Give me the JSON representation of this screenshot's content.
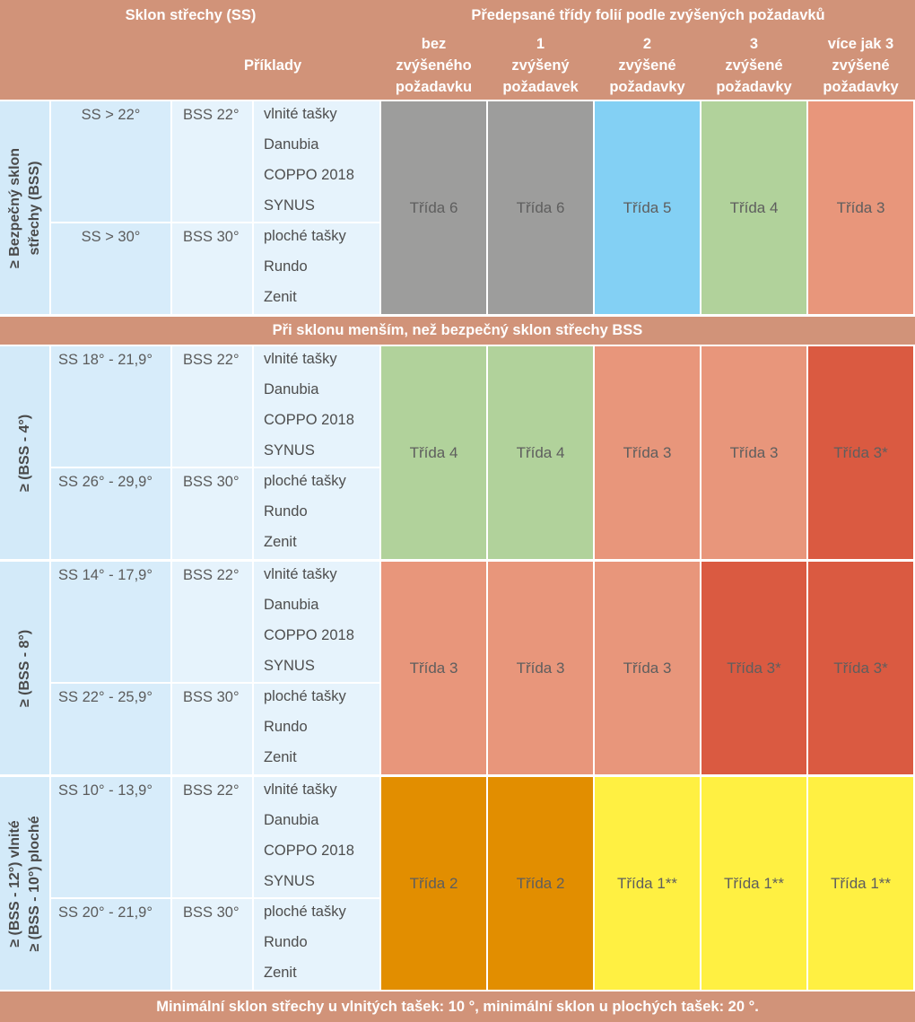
{
  "header": {
    "slope_title": "Sklon střechy (SS)",
    "classes_title": "Předepsané třídy folií podle zvýšených požadavků",
    "examples_title": "Příklady",
    "columns": [
      [
        "bez",
        "zvýšeného",
        "požadavku"
      ],
      [
        "1",
        "zvýšený",
        "požadavek"
      ],
      [
        "2",
        "zvýšené",
        "požadavky"
      ],
      [
        "3",
        "zvýšené",
        "požadavky"
      ],
      [
        "více jak 3",
        "zvýšené",
        "požadavky"
      ]
    ]
  },
  "colors": {
    "header_bg": "#d19379",
    "gray": "#9d9d9c",
    "blue": "#83d0f4",
    "green": "#b1d29b",
    "salmon": "#e8967b",
    "red": "#da5a41",
    "orange": "#e28e00",
    "yellow": "#fff042"
  },
  "middle_bar": "Při sklonu menším, než bezpečný sklon střechy BSS",
  "footer_bar": "Minimální sklon střechy u vlnitých tašek: 10 °, minimální sklon u plochých tašek: 20 °.",
  "groups": [
    {
      "label": [
        "≥ Bezpečný sklon",
        "střechy (BSS)"
      ],
      "subrows": [
        {
          "range": "SS > 22°",
          "bss": "BSS 22°",
          "examples": [
            "vlnité tašky",
            "Danubia",
            "COPPO 2018",
            "SYNUS"
          ]
        },
        {
          "range": "SS > 30°",
          "bss": "BSS 30°",
          "examples": [
            "ploché tašky",
            "Rundo",
            "Zenit"
          ]
        }
      ],
      "classes": [
        {
          "label": "Třída 6",
          "color": "#9d9d9c"
        },
        {
          "label": "Třída 6",
          "color": "#9d9d9c"
        },
        {
          "label": "Třída 5",
          "color": "#83d0f4"
        },
        {
          "label": "Třída 4",
          "color": "#b1d29b"
        },
        {
          "label": "Třída 3",
          "color": "#e8967b"
        }
      ]
    },
    {
      "label": [
        "≥ (BSS - 4°)"
      ],
      "subrows": [
        {
          "range": "SS 18° - 21,9°",
          "bss": "BSS 22°",
          "examples": [
            "vlnité tašky",
            "Danubia",
            "COPPO 2018",
            "SYNUS"
          ]
        },
        {
          "range": "SS 26° - 29,9°",
          "bss": "BSS 30°",
          "examples": [
            "ploché tašky",
            "Rundo",
            "Zenit"
          ]
        }
      ],
      "classes": [
        {
          "label": "Třída 4",
          "color": "#b1d29b"
        },
        {
          "label": "Třída 4",
          "color": "#b1d29b"
        },
        {
          "label": "Třída 3",
          "color": "#e8967b"
        },
        {
          "label": "Třída 3",
          "color": "#e8967b"
        },
        {
          "label": "Třída 3*",
          "color": "#da5a41"
        }
      ]
    },
    {
      "label": [
        "≥ (BSS - 8°)"
      ],
      "subrows": [
        {
          "range": "SS 14° - 17,9°",
          "bss": "BSS 22°",
          "examples": [
            "vlnité tašky",
            "Danubia",
            "COPPO 2018",
            "SYNUS"
          ]
        },
        {
          "range": "SS 22° - 25,9°",
          "bss": "BSS 30°",
          "examples": [
            "ploché tašky",
            "Rundo",
            "Zenit"
          ]
        }
      ],
      "classes": [
        {
          "label": "Třída 3",
          "color": "#e8967b"
        },
        {
          "label": "Třída 3",
          "color": "#e8967b"
        },
        {
          "label": "Třída 3",
          "color": "#e8967b"
        },
        {
          "label": "Třída 3*",
          "color": "#da5a41"
        },
        {
          "label": "Třída 3*",
          "color": "#da5a41"
        }
      ]
    },
    {
      "label": [
        "≥ (BSS - 12°) vlnité",
        "≥ (BSS - 10°) ploché"
      ],
      "subrows": [
        {
          "range": "SS 10° - 13,9°",
          "bss": "BSS 22°",
          "examples": [
            "vlnité tašky",
            "Danubia",
            "COPPO 2018",
            "SYNUS"
          ]
        },
        {
          "range": "SS 20° - 21,9°",
          "bss": "BSS 30°",
          "examples": [
            "ploché tašky",
            "Rundo",
            "Zenit"
          ]
        }
      ],
      "classes": [
        {
          "label": "Třída 2",
          "color": "#e28e00"
        },
        {
          "label": "Třída 2",
          "color": "#e28e00"
        },
        {
          "label": "Třída 1**",
          "color": "#fff042"
        },
        {
          "label": "Třída 1**",
          "color": "#fff042"
        },
        {
          "label": "Třída 1**",
          "color": "#fff042"
        }
      ]
    }
  ]
}
